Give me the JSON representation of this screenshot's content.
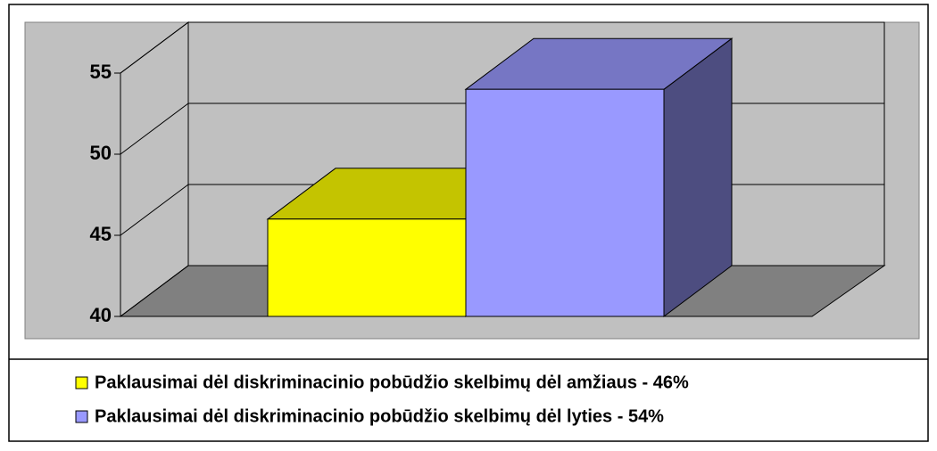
{
  "chart_data": {
    "type": "bar3d",
    "series": [
      {
        "name": "Paklausimai dėl diskriminacinio pobūdžio skelbimų dėl amžiaus - 46%",
        "color": "#ffff00",
        "values": [
          46
        ]
      },
      {
        "name": "Paklausimai dėl diskriminacinio pobūdžio skelbimų dėl lyties - 54%",
        "color": "#9999ff",
        "values": [
          54
        ]
      }
    ],
    "ylim": [
      40,
      55
    ],
    "yticks": [
      40,
      45,
      50,
      55
    ],
    "grid": true,
    "legend": "bottom"
  }
}
